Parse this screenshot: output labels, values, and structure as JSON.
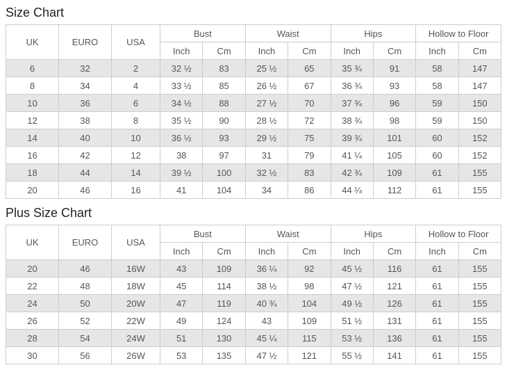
{
  "colors": {
    "border": "#cccccc",
    "stripe_row_bg": "#e6e6e6",
    "cell_text": "#555555",
    "title_text": "#222222"
  },
  "tables": [
    {
      "title": "Size Chart",
      "size_columns": [
        "UK",
        "EURO",
        "USA"
      ],
      "measure_columns": [
        "Bust",
        "Waist",
        "Hips",
        "Hollow to Floor"
      ],
      "unit_labels": [
        "Inch",
        "Cm"
      ],
      "rows": [
        [
          "6",
          "32",
          "2",
          "32 ½",
          "83",
          "25 ½",
          "65",
          "35 ¾",
          "91",
          "58",
          "147"
        ],
        [
          "8",
          "34",
          "4",
          "33 ½",
          "85",
          "26 ½",
          "67",
          "36 ¾",
          "93",
          "58",
          "147"
        ],
        [
          "10",
          "36",
          "6",
          "34 ½",
          "88",
          "27 ½",
          "70",
          "37 ¾",
          "96",
          "59",
          "150"
        ],
        [
          "12",
          "38",
          "8",
          "35 ½",
          "90",
          "28 ½",
          "72",
          "38 ¾",
          "98",
          "59",
          "150"
        ],
        [
          "14",
          "40",
          "10",
          "36 ½",
          "93",
          "29 ½",
          "75",
          "39 ¾",
          "101",
          "60",
          "152"
        ],
        [
          "16",
          "42",
          "12",
          "38",
          "97",
          "31",
          "79",
          "41 ¼",
          "105",
          "60",
          "152"
        ],
        [
          "18",
          "44",
          "14",
          "39 ½",
          "100",
          "32 ½",
          "83",
          "42 ¾",
          "109",
          "61",
          "155"
        ],
        [
          "20",
          "46",
          "16",
          "41",
          "104",
          "34",
          "86",
          "44 ¼",
          "112",
          "61",
          "155"
        ]
      ]
    },
    {
      "title": "Plus Size Chart",
      "size_columns": [
        "UK",
        "EURO",
        "USA"
      ],
      "measure_columns": [
        "Bust",
        "Waist",
        "Hips",
        "Hollow to Floor"
      ],
      "unit_labels": [
        "Inch",
        "Cm"
      ],
      "rows": [
        [
          "20",
          "46",
          "16W",
          "43",
          "109",
          "36 ¼",
          "92",
          "45 ½",
          "116",
          "61",
          "155"
        ],
        [
          "22",
          "48",
          "18W",
          "45",
          "114",
          "38 ½",
          "98",
          "47 ½",
          "121",
          "61",
          "155"
        ],
        [
          "24",
          "50",
          "20W",
          "47",
          "119",
          "40 ¾",
          "104",
          "49 ½",
          "126",
          "61",
          "155"
        ],
        [
          "26",
          "52",
          "22W",
          "49",
          "124",
          "43",
          "109",
          "51 ½",
          "131",
          "61",
          "155"
        ],
        [
          "28",
          "54",
          "24W",
          "51",
          "130",
          "45 ¼",
          "115",
          "53 ½",
          "136",
          "61",
          "155"
        ],
        [
          "30",
          "56",
          "26W",
          "53",
          "135",
          "47 ½",
          "121",
          "55 ½",
          "141",
          "61",
          "155"
        ]
      ]
    }
  ]
}
